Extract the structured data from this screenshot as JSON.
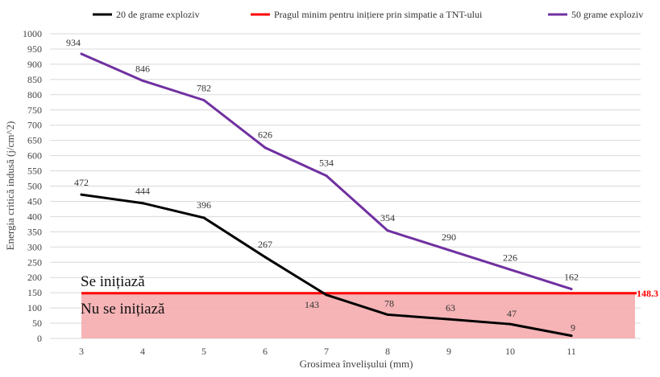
{
  "chart_data": {
    "type": "line",
    "xlabel": "Grosimea învelișului (mm)",
    "ylabel": "Energia critică indusă (j/cm^2)",
    "ylim": [
      0,
      1000
    ],
    "y_ticks": [
      "0",
      "50",
      "100",
      "150",
      "200",
      "250",
      "300",
      "350",
      "400",
      "450",
      "500",
      "550",
      "600",
      "650",
      "700",
      "750",
      "800",
      "850",
      "900",
      "950",
      "1000"
    ],
    "categories": [
      "3",
      "4",
      "5",
      "6",
      "7",
      "8",
      "9",
      "10",
      "11"
    ],
    "x": [
      3,
      4,
      5,
      6,
      7,
      8,
      9,
      10,
      11
    ],
    "grid": true,
    "legend_position": "top",
    "series": [
      {
        "name": "20 de grame exploziv",
        "color": "#000000",
        "values": [
          472,
          444,
          396,
          267,
          143,
          78,
          63,
          47,
          9
        ],
        "labels": [
          "472",
          "444",
          "396",
          "267",
          "143",
          "78",
          "63",
          "47",
          "9"
        ]
      },
      {
        "name": "Pragul minim pentru inițiere prin simpatie a TNT-ului",
        "color": "#ff0000",
        "value": 148.3,
        "label": "148.3"
      },
      {
        "name": "50 grame exploziv",
        "color": "#7030a0",
        "values": [
          934,
          846,
          782,
          626,
          534,
          354,
          290,
          226,
          162
        ],
        "labels": [
          "934",
          "846",
          "782",
          "626",
          "534",
          "354",
          "290",
          "226",
          "162"
        ]
      }
    ],
    "annotations": {
      "above_threshold": "Se inițiază",
      "below_threshold": "Nu se inițiază"
    },
    "region_fill": "#f4a7a9"
  }
}
